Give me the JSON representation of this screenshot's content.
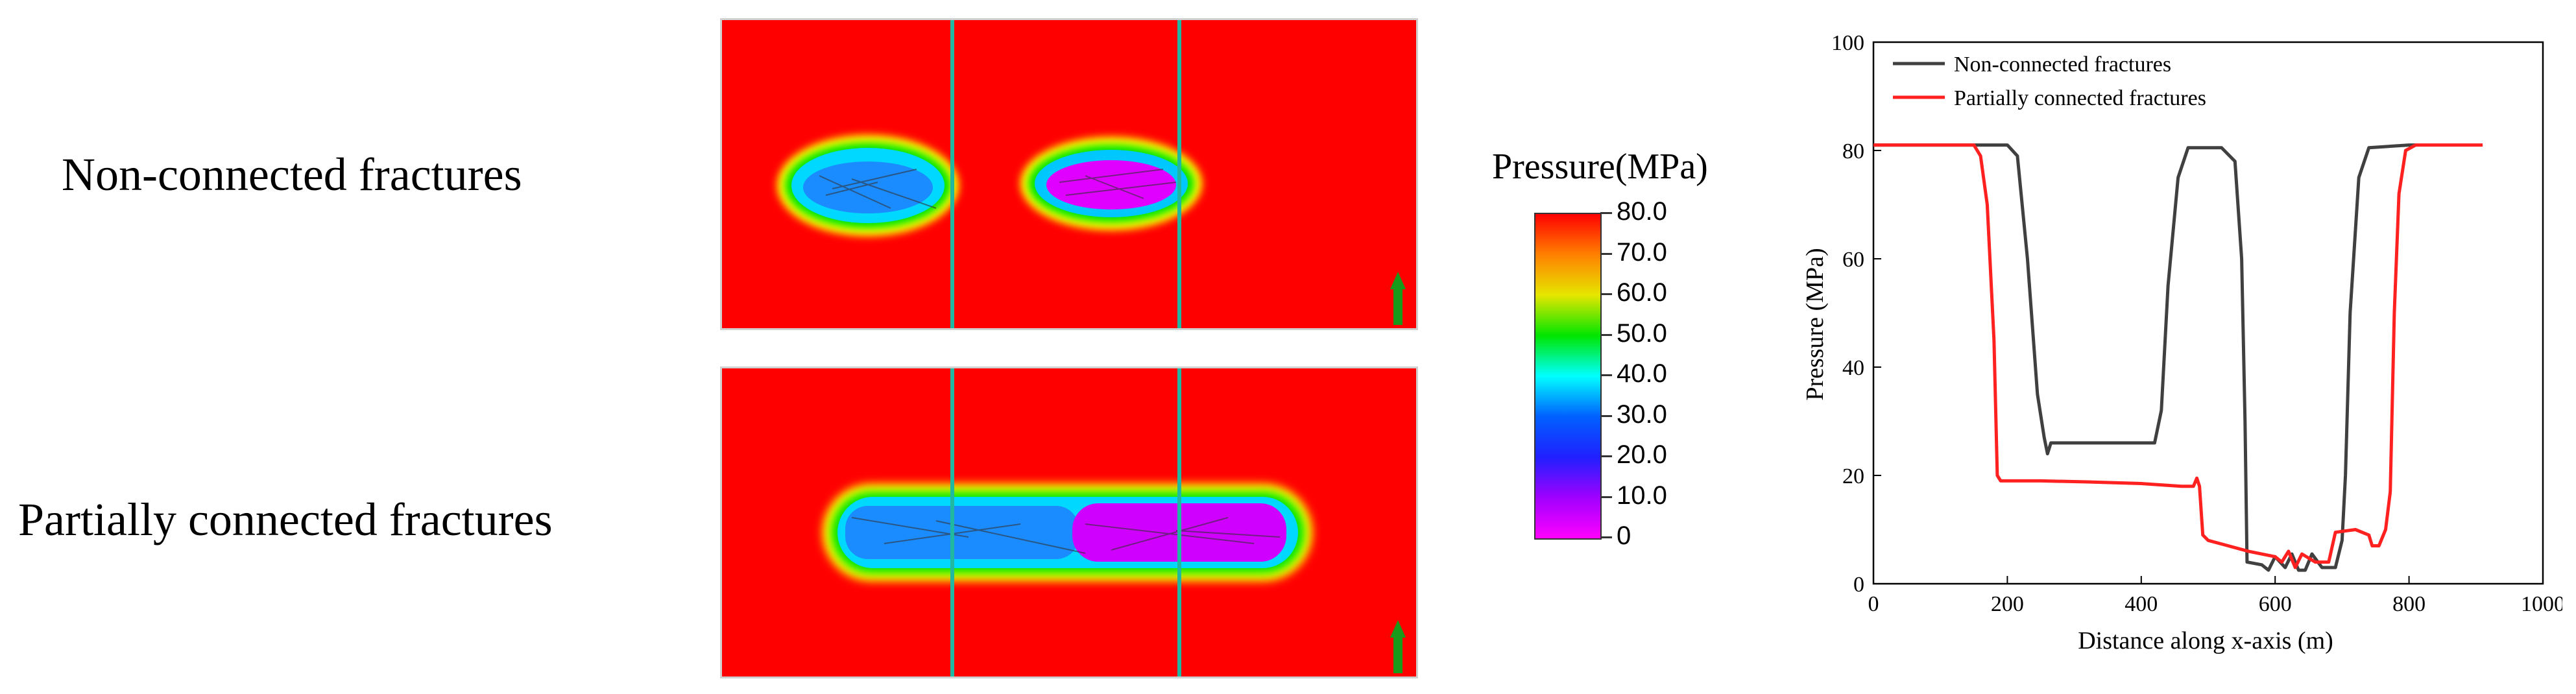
{
  "row_labels": {
    "top": "Non-connected fractures",
    "bottom": "Partially connected fractures"
  },
  "legend": {
    "title": "Pressure(MPa)",
    "ticks": [
      "80.0",
      "70.0",
      "60.0",
      "50.0",
      "40.0",
      "30.0",
      "20.0",
      "10.0",
      "0"
    ],
    "stops": [
      "#ff0000",
      "#ff8000",
      "#e6e600",
      "#00e600",
      "#00ffff",
      "#0060ff",
      "#2020ff",
      "#a000ff",
      "#ff00ff"
    ]
  },
  "colors": {
    "background_pressure": "#ff0000",
    "well_line": "#20b8a0",
    "arrow": "#1a9a1a"
  },
  "chart_data": [
    {
      "type": "heatmap",
      "description_label": "Non-connected fractures"
    },
    {
      "type": "heatmap",
      "description_label": "Partially connected fractures"
    },
    {
      "type": "line",
      "title": "",
      "xlabel": "Distance along x-axis (m)",
      "ylabel": "Pressure (MPa)",
      "xlim": [
        0,
        1000
      ],
      "ylim": [
        0,
        100
      ],
      "xticks": [
        "0",
        "200",
        "400",
        "600",
        "800",
        "1000"
      ],
      "yticks": [
        "0",
        "20",
        "40",
        "60",
        "80",
        "100"
      ],
      "legend_position": "top-left",
      "series": [
        {
          "name": "Non-connected fractures",
          "color": "#404040",
          "points": [
            [
              0,
              81
            ],
            [
              200,
              81
            ],
            [
              215,
              79
            ],
            [
              230,
              60
            ],
            [
              245,
              35
            ],
            [
              255,
              27
            ],
            [
              260,
              24
            ],
            [
              265,
              26
            ],
            [
              300,
              26
            ],
            [
              350,
              26
            ],
            [
              420,
              26
            ],
            [
              430,
              32
            ],
            [
              440,
              55
            ],
            [
              455,
              75
            ],
            [
              470,
              80.5
            ],
            [
              520,
              80.5
            ],
            [
              540,
              78
            ],
            [
              550,
              60
            ],
            [
              555,
              30
            ],
            [
              558,
              4
            ],
            [
              580,
              3.5
            ],
            [
              590,
              2.5
            ],
            [
              600,
              5
            ],
            [
              615,
              3
            ],
            [
              625,
              5.5
            ],
            [
              635,
              2.5
            ],
            [
              645,
              2.5
            ],
            [
              655,
              5.5
            ],
            [
              670,
              3
            ],
            [
              690,
              3
            ],
            [
              700,
              8
            ],
            [
              705,
              20
            ],
            [
              712,
              50
            ],
            [
              725,
              75
            ],
            [
              740,
              80.5
            ],
            [
              800,
              81
            ],
            [
              810,
              81
            ]
          ]
        },
        {
          "name": "Partially connected fractures",
          "color": "#ff2020",
          "points": [
            [
              0,
              81
            ],
            [
              150,
              81
            ],
            [
              160,
              79
            ],
            [
              170,
              70
            ],
            [
              180,
              45
            ],
            [
              185,
              20
            ],
            [
              190,
              19
            ],
            [
              250,
              19
            ],
            [
              320,
              18.8
            ],
            [
              400,
              18.5
            ],
            [
              460,
              18
            ],
            [
              478,
              18
            ],
            [
              483,
              19.5
            ],
            [
              487,
              18
            ],
            [
              492,
              9
            ],
            [
              500,
              8
            ],
            [
              560,
              6
            ],
            [
              600,
              5
            ],
            [
              610,
              4
            ],
            [
              620,
              6
            ],
            [
              630,
              3
            ],
            [
              640,
              5.5
            ],
            [
              660,
              4
            ],
            [
              680,
              4
            ],
            [
              690,
              9.5
            ],
            [
              720,
              10
            ],
            [
              740,
              9
            ],
            [
              745,
              7
            ],
            [
              755,
              7
            ],
            [
              765,
              10
            ],
            [
              772,
              17
            ],
            [
              778,
              50
            ],
            [
              785,
              72
            ],
            [
              795,
              80
            ],
            [
              810,
              81
            ],
            [
              910,
              81
            ]
          ]
        }
      ]
    }
  ]
}
